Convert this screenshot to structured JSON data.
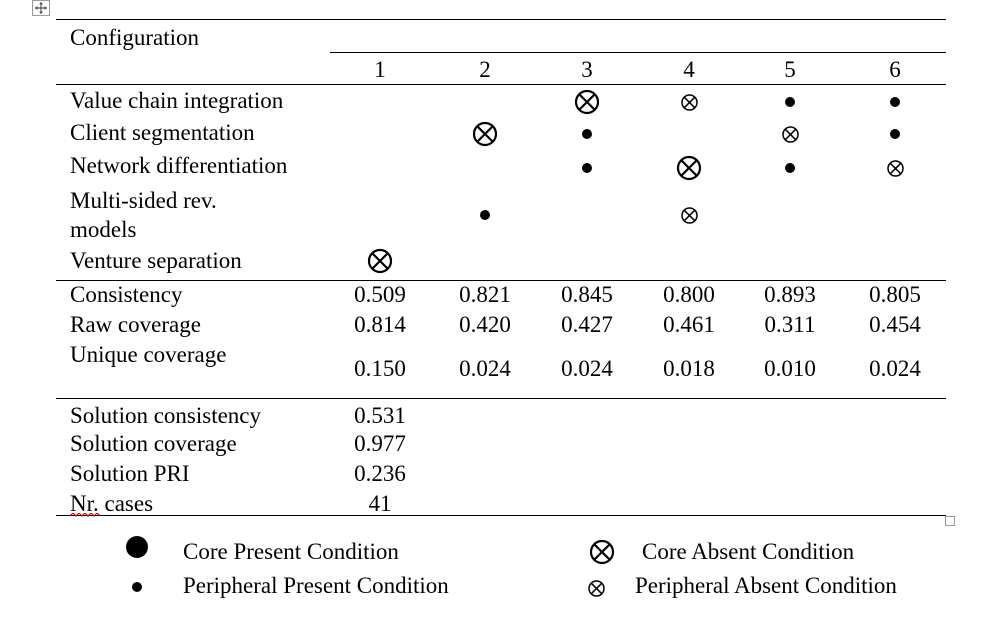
{
  "table": {
    "header_label": "Configuration",
    "columns": [
      "1",
      "2",
      "3",
      "4",
      "5",
      "6"
    ],
    "condition_rows": [
      {
        "label": "Value chain integration",
        "cells": [
          "",
          "",
          "core-absent",
          "peripheral-absent",
          "peripheral-present",
          "peripheral-present"
        ]
      },
      {
        "label": "Client segmentation",
        "cells": [
          "",
          "core-absent",
          "peripheral-present",
          "",
          "peripheral-absent",
          "peripheral-present"
        ]
      },
      {
        "label": "Network differentiation",
        "cells": [
          "",
          "",
          "peripheral-present",
          "core-absent",
          "peripheral-present",
          "peripheral-absent"
        ]
      },
      {
        "label_lines": [
          "Multi-sided rev.",
          "models"
        ],
        "cells": [
          "",
          "peripheral-present",
          "",
          "peripheral-absent",
          "",
          ""
        ]
      },
      {
        "label": "Venture separation",
        "cells": [
          "core-absent",
          "",
          "",
          "",
          "",
          ""
        ]
      }
    ],
    "metric_rows": [
      {
        "label": "Consistency",
        "values": [
          "0.509",
          "0.821",
          "0.845",
          "0.800",
          "0.893",
          "0.805"
        ]
      },
      {
        "label": "Raw coverage",
        "values": [
          "0.814",
          "0.420",
          "0.427",
          "0.461",
          "0.311",
          "0.454"
        ]
      },
      {
        "label": "Unique coverage",
        "values": [
          "0.150",
          "0.024",
          "0.024",
          "0.018",
          "0.010",
          "0.024"
        ]
      }
    ],
    "solution_rows": [
      {
        "label": "Solution consistency",
        "value": "0.531"
      },
      {
        "label": "Solution coverage",
        "value": "0.977"
      },
      {
        "label": "Solution PRI",
        "value": "0.236"
      },
      {
        "label": "Nr. cases",
        "value": "41"
      }
    ]
  },
  "legend": {
    "core_present": "Core Present Condition",
    "peripheral_present": "Peripheral Present Condition",
    "core_absent": "Core Absent Condition",
    "peripheral_absent": "Peripheral Absent Condition"
  },
  "icons": {
    "core_present": "filled-circle-large",
    "peripheral_present": "filled-circle-small",
    "core_absent": "circle-x-large",
    "peripheral_absent": "circle-x-small",
    "move_handle": "four-way-arrow"
  },
  "colors": {
    "ink": "#000000",
    "spellcheck": "#cc0000",
    "handle": "#9a9a9a"
  }
}
